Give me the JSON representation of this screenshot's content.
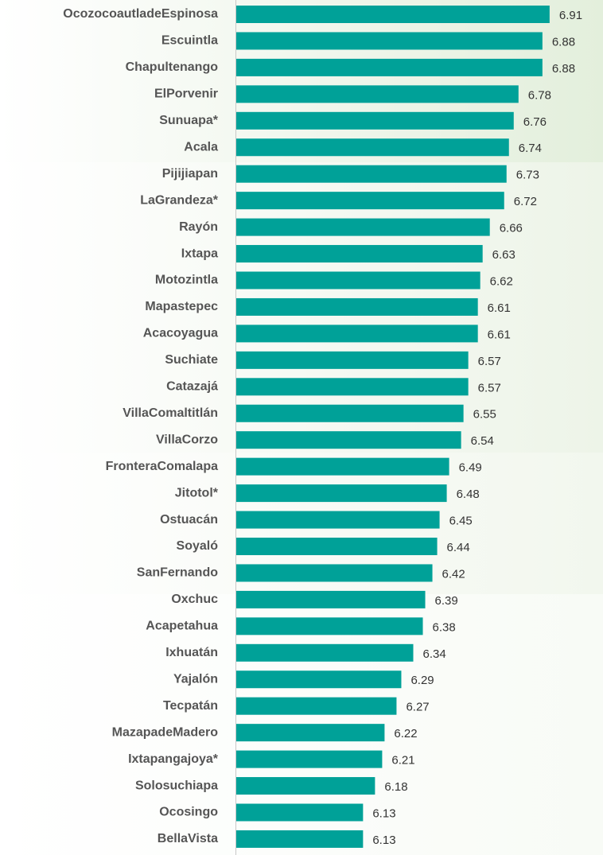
{
  "chart_data": {
    "type": "barh",
    "categories": [
      "OcozocoautladeEspinosa",
      "Escuintla",
      "Chapultenango",
      "ElPorvenir",
      "Sunuapa*",
      "Acala",
      "Pijijiapan",
      "LaGrandeza*",
      "Rayón",
      "Ixtapa",
      "Motozintla",
      "Mapastepec",
      "Acacoyagua",
      "Suchiate",
      "Catazajá",
      "VillaComaltitlán",
      "VillaCorzo",
      "FronteraComalapa",
      "Jitotol*",
      "Ostuacán",
      "Soyaló",
      "SanFernando",
      "Oxchuc",
      "Acapetahua",
      "Ixhuatán",
      "Yajalón",
      "Tecpatán",
      "MazapadeMadero",
      "Ixtapangajoya*",
      "Solosuchiapa",
      "Ocosingo",
      "BellaVista"
    ],
    "values": [
      6.91,
      6.88,
      6.88,
      6.78,
      6.76,
      6.74,
      6.73,
      6.72,
      6.66,
      6.63,
      6.62,
      6.61,
      6.61,
      6.57,
      6.57,
      6.55,
      6.54,
      6.49,
      6.48,
      6.45,
      6.44,
      6.42,
      6.39,
      6.38,
      6.34,
      6.29,
      6.27,
      6.22,
      6.21,
      6.18,
      6.13,
      6.13
    ],
    "color": "#00a198",
    "xlim": [
      5.6,
      7.1
    ]
  }
}
